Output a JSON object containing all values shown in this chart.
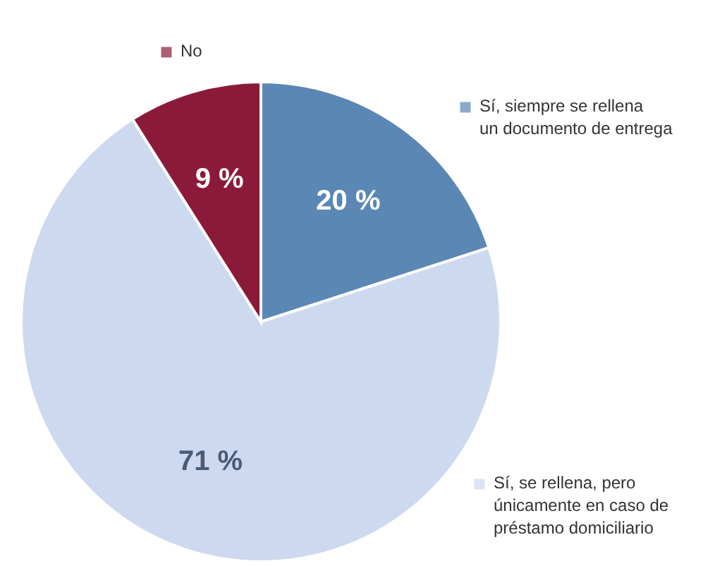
{
  "chart_data": {
    "type": "pie",
    "categories": [
      "Sí, siempre se rellena un documento de entrega",
      "Sí, se rellena, pero únicamente en caso de préstamo domiciliario",
      "No"
    ],
    "values": [
      20,
      71,
      9
    ],
    "colors": [
      "#5b87b5",
      "#cdd9ee",
      "#8b1a3a"
    ],
    "value_labels": [
      "20 %",
      "71 %",
      "9 %"
    ],
    "legend": "right"
  }
}
